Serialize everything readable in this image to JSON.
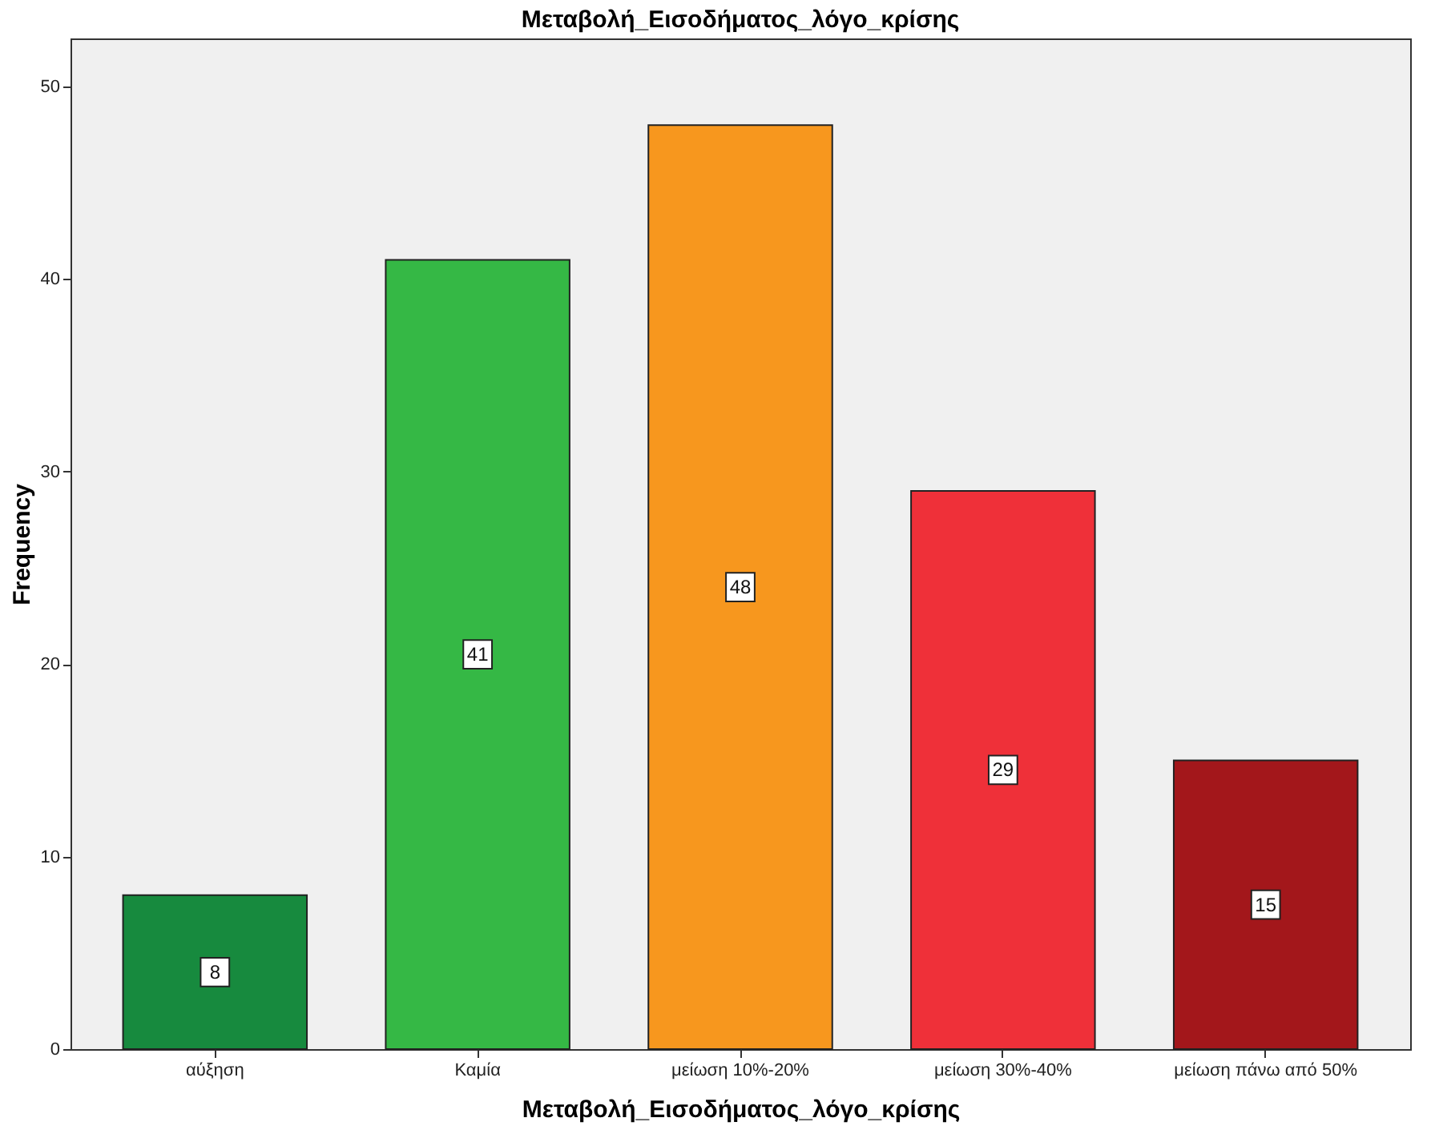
{
  "chart_data": {
    "type": "bar",
    "title": "Μεταβολή_Εισοδήματος_λόγο_κρίσης",
    "xlabel": "Μεταβολή_Εισοδήματος_λόγο_κρίσης",
    "ylabel": "Frequency",
    "categories": [
      "αύξηση",
      "Καμία",
      "μείωση 10%-20%",
      "μείωση 30%-40%",
      "μείωση πάνω από 50%"
    ],
    "values": [
      8,
      41,
      48,
      29,
      15
    ],
    "colors": [
      "#178a3e",
      "#35b845",
      "#f7971e",
      "#ef3039",
      "#a3171b"
    ],
    "ylim": [
      0,
      52.5
    ],
    "yticks": [
      0,
      10,
      20,
      30,
      40,
      50
    ],
    "data_labels": true,
    "grid": false
  }
}
